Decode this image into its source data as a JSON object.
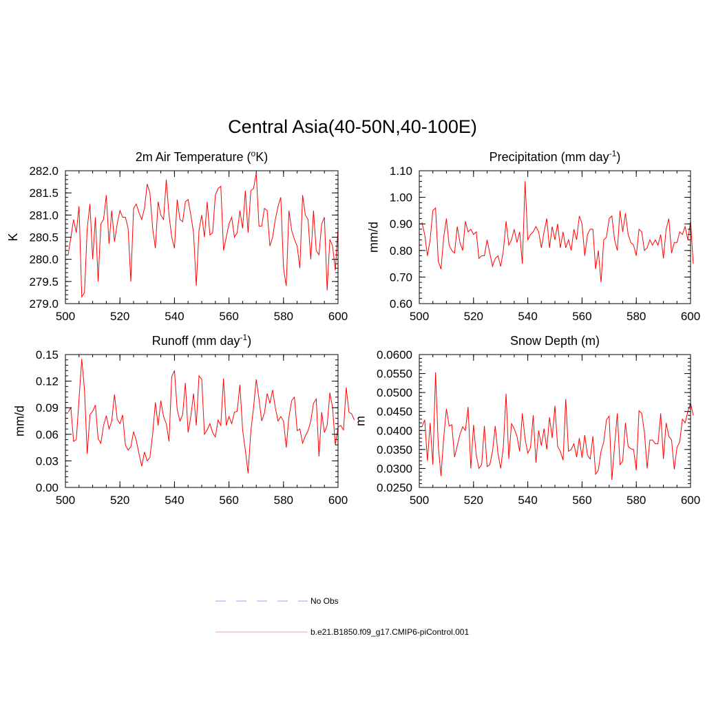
{
  "page_title": "Central Asia(40-50N,40-100E)",
  "legend": {
    "entries": [
      {
        "label": "No Obs",
        "color": "#9999ff",
        "dash": true
      },
      {
        "label": "b.e21.B1850.f09_g17.CMIP6-piControl.001",
        "color": "#ff0000",
        "dash": false
      }
    ]
  },
  "chart_data": [
    {
      "type": "line",
      "title": "2m Air Temperature (",
      "title_sup": "o",
      "title_after": "K)",
      "ylabel": "K",
      "xlabel": "",
      "xlim": [
        500,
        600
      ],
      "ylim": [
        279.0,
        282.0
      ],
      "xticks": [
        500,
        520,
        540,
        560,
        580,
        600
      ],
      "xtick_labels": [
        "500",
        "520",
        "540",
        "560",
        "580",
        "600"
      ],
      "yticks": [
        279.0,
        279.5,
        280.0,
        280.5,
        281.0,
        281.5,
        282.0
      ],
      "ytick_labels": [
        "279.0",
        "279.5",
        "280.0",
        "280.5",
        "281.0",
        "281.5",
        "282.0"
      ],
      "series": [
        {
          "name": "b.e21.B1850.f09_g17.CMIP6-piControl.001",
          "color": "#ff0000",
          "x_start": 501,
          "values": [
            280.1,
            280.5,
            280.9,
            280.6,
            281.2,
            279.15,
            279.25,
            280.7,
            281.25,
            280.0,
            280.95,
            279.5,
            280.8,
            280.9,
            281.45,
            280.35,
            281.1,
            280.4,
            280.8,
            281.1,
            280.95,
            280.95,
            280.7,
            279.5,
            281.15,
            281.25,
            281.05,
            280.9,
            281.15,
            281.7,
            281.5,
            280.7,
            280.25,
            281.3,
            281.0,
            280.9,
            281.8,
            281.0,
            280.5,
            280.25,
            281.35,
            280.9,
            280.85,
            281.3,
            281.35,
            281.0,
            280.6,
            279.4,
            280.65,
            281.0,
            280.5,
            281.3,
            280.55,
            280.6,
            281.45,
            281.6,
            281.65,
            280.2,
            280.5,
            280.8,
            280.95,
            280.5,
            280.6,
            281.1,
            280.7,
            281.55,
            280.6,
            281.55,
            281.6,
            281.95,
            280.75,
            280.75,
            281.15,
            281.1,
            280.3,
            280.5,
            280.9,
            281.2,
            281.4,
            279.8,
            279.4,
            281.1,
            280.65,
            280.45,
            280.3,
            279.8,
            281.45,
            281.0,
            280.9,
            280.0,
            281.1,
            280.2,
            280.1,
            280.8,
            280.95,
            279.3,
            280.45,
            280.3,
            279.75,
            280.7
          ]
        }
      ]
    },
    {
      "type": "line",
      "title": "Precipitation (mm day",
      "title_sup": "-1",
      "title_after": ")",
      "ylabel": "mm/d",
      "xlabel": "",
      "xlim": [
        500,
        600
      ],
      "ylim": [
        0.6,
        1.1
      ],
      "xticks": [
        500,
        520,
        540,
        560,
        580,
        600
      ],
      "xtick_labels": [
        "500",
        "520",
        "540",
        "560",
        "580",
        "600"
      ],
      "yticks": [
        0.6,
        0.7,
        0.8,
        0.9,
        1.0,
        1.1
      ],
      "ytick_labels": [
        "0.60",
        "0.70",
        "0.80",
        "0.90",
        "1.00",
        "1.10"
      ],
      "series": [
        {
          "name": "b.e21.B1850.f09_g17.CMIP6-piControl.001",
          "color": "#ff0000",
          "x_start": 501,
          "values": [
            0.905,
            0.86,
            0.78,
            0.84,
            0.95,
            0.96,
            0.76,
            0.73,
            0.85,
            0.92,
            0.82,
            0.8,
            0.79,
            0.89,
            0.83,
            0.8,
            0.91,
            0.87,
            0.88,
            0.86,
            0.87,
            0.77,
            0.78,
            0.78,
            0.84,
            0.79,
            0.74,
            0.77,
            0.78,
            0.74,
            0.8,
            0.91,
            0.82,
            0.84,
            0.88,
            0.83,
            0.87,
            0.75,
            1.06,
            0.84,
            0.86,
            0.87,
            0.89,
            0.87,
            0.81,
            0.87,
            0.92,
            0.81,
            0.89,
            0.84,
            0.9,
            0.81,
            0.87,
            0.81,
            0.84,
            0.8,
            0.88,
            0.84,
            0.93,
            0.9,
            0.78,
            0.86,
            0.88,
            0.88,
            0.73,
            0.8,
            0.68,
            0.84,
            0.85,
            0.92,
            0.93,
            0.84,
            0.8,
            0.95,
            0.87,
            0.94,
            0.86,
            0.83,
            0.82,
            0.78,
            0.88,
            0.87,
            0.8,
            0.81,
            0.84,
            0.82,
            0.84,
            0.82,
            0.86,
            0.77,
            0.88,
            0.92,
            0.79,
            0.83,
            0.83,
            0.87,
            0.86,
            0.89,
            0.84,
            0.91,
            0.75
          ]
        }
      ]
    },
    {
      "type": "line",
      "title": "Runoff (mm day",
      "title_sup": "-1",
      "title_after": ")",
      "ylabel": "mm/d",
      "xlabel": "",
      "xlim": [
        500,
        600
      ],
      "ylim": [
        0.0,
        0.15
      ],
      "xticks": [
        500,
        520,
        540,
        560,
        580,
        600
      ],
      "xtick_labels": [
        "500",
        "520",
        "540",
        "560",
        "580",
        "600"
      ],
      "yticks": [
        0.0,
        0.03,
        0.06,
        0.09,
        0.12,
        0.15
      ],
      "ytick_labels": [
        "0.00",
        "0.03",
        "0.06",
        "0.09",
        "0.12",
        "0.15"
      ],
      "series": [
        {
          "name": "b.e21.B1850.f09_g17.CMIP6-piControl.001",
          "color": "#ff0000",
          "x_start": 501,
          "values": [
            0.085,
            0.09,
            0.052,
            0.054,
            0.1,
            0.145,
            0.11,
            0.038,
            0.082,
            0.086,
            0.093,
            0.055,
            0.05,
            0.07,
            0.081,
            0.066,
            0.075,
            0.105,
            0.077,
            0.072,
            0.082,
            0.048,
            0.042,
            0.046,
            0.063,
            0.053,
            0.038,
            0.024,
            0.04,
            0.03,
            0.034,
            0.06,
            0.096,
            0.07,
            0.098,
            0.08,
            0.072,
            0.052,
            0.125,
            0.132,
            0.088,
            0.075,
            0.082,
            0.118,
            0.062,
            0.08,
            0.106,
            0.07,
            0.126,
            0.122,
            0.06,
            0.065,
            0.072,
            0.062,
            0.057,
            0.076,
            0.07,
            0.123,
            0.07,
            0.08,
            0.072,
            0.085,
            0.086,
            0.116,
            0.065,
            0.042,
            0.016,
            0.063,
            0.09,
            0.122,
            0.1,
            0.075,
            0.084,
            0.106,
            0.095,
            0.11,
            0.09,
            0.075,
            0.08,
            0.075,
            0.045,
            0.08,
            0.098,
            0.102,
            0.064,
            0.066,
            0.05,
            0.058,
            0.064,
            0.075,
            0.095,
            0.1,
            0.035,
            0.085,
            0.062,
            0.07,
            0.107,
            0.09,
            0.048,
            0.068,
            0.07,
            0.065,
            0.113,
            0.085,
            0.083,
            0.076
          ]
        }
      ]
    },
    {
      "type": "line",
      "title": "Snow Depth (m)",
      "title_sup": "",
      "title_after": "",
      "ylabel": "m",
      "xlabel": "",
      "xlim": [
        500,
        600
      ],
      "ylim": [
        0.025,
        0.06
      ],
      "xticks": [
        500,
        520,
        540,
        560,
        580,
        600
      ],
      "xtick_labels": [
        "500",
        "520",
        "540",
        "560",
        "580",
        "600"
      ],
      "yticks": [
        0.025,
        0.03,
        0.035,
        0.04,
        0.045,
        0.05,
        0.055,
        0.06
      ],
      "ytick_labels": [
        "0.0250",
        "0.0300",
        "0.0350",
        "0.0400",
        "0.0450",
        "0.0500",
        "0.0550",
        "0.0600"
      ],
      "series": [
        {
          "name": "b.e21.B1850.f09_g17.CMIP6-piControl.001",
          "color": "#ff0000",
          "x_start": 501,
          "values": [
            0.041,
            0.0428,
            0.032,
            0.042,
            0.031,
            0.0553,
            0.036,
            0.028,
            0.038,
            0.0457,
            0.0412,
            0.0415,
            0.033,
            0.036,
            0.039,
            0.041,
            0.04,
            0.0462,
            0.03,
            0.0415,
            0.0335,
            0.03,
            0.031,
            0.0412,
            0.0305,
            0.031,
            0.0345,
            0.0412,
            0.034,
            0.03,
            0.0358,
            0.0497,
            0.0325,
            0.0418,
            0.0405,
            0.0385,
            0.0345,
            0.0445,
            0.0378,
            0.034,
            0.0355,
            0.044,
            0.0315,
            0.04,
            0.036,
            0.0405,
            0.035,
            0.0435,
            0.038,
            0.0465,
            0.0358,
            0.0345,
            0.0322,
            0.0483,
            0.0345,
            0.035,
            0.0365,
            0.033,
            0.038,
            0.0328,
            0.0388,
            0.0335,
            0.0325,
            0.0385,
            0.0285,
            0.0295,
            0.0345,
            0.037,
            0.0428,
            0.0438,
            0.027,
            0.036,
            0.0445,
            0.031,
            0.032,
            0.042,
            0.0358,
            0.0352,
            0.035,
            0.0295,
            0.0452,
            0.0445,
            0.0395,
            0.03,
            0.0375,
            0.0375,
            0.0365,
            0.0365,
            0.0445,
            0.0325,
            0.042,
            0.0385,
            0.0375,
            0.0298,
            0.0355,
            0.037,
            0.043,
            0.042,
            0.045,
            0.0472,
            0.044
          ]
        }
      ]
    }
  ]
}
